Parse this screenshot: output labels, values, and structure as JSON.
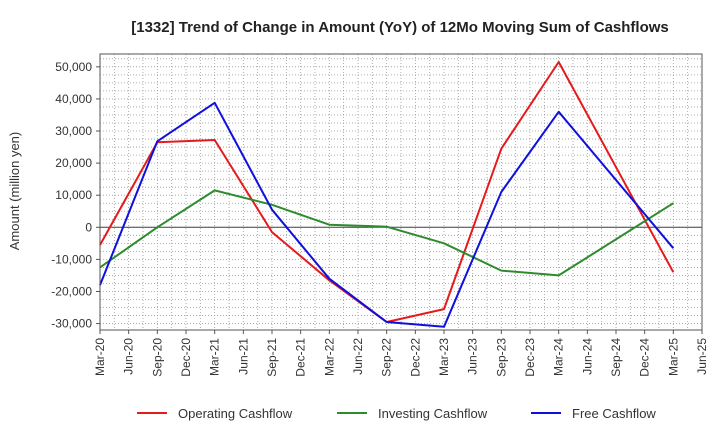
{
  "chart_data": {
    "type": "line",
    "title": "[1332]  Trend of Change in Amount (YoY) of 12Mo Moving Sum of Cashflows",
    "xlabel": "",
    "ylabel": "Amount (million yen)",
    "ylim": [
      -32000,
      54000
    ],
    "yticks": [
      50000,
      40000,
      30000,
      20000,
      10000,
      0,
      -10000,
      -20000,
      -30000
    ],
    "ytick_labels": [
      "50,000",
      "40,000",
      "30,000",
      "20,000",
      "10,000",
      "0",
      "-10,000",
      "-20,000",
      "-30,000"
    ],
    "categories": [
      "Mar-20",
      "Jun-20",
      "Sep-20",
      "Dec-20",
      "Mar-21",
      "Jun-21",
      "Sep-21",
      "Dec-21",
      "Mar-22",
      "Jun-22",
      "Sep-22",
      "Dec-22",
      "Mar-23",
      "Jun-23",
      "Sep-23",
      "Dec-23",
      "Mar-24",
      "Jun-24",
      "Sep-24",
      "Dec-24",
      "Mar-25",
      "Jun-25"
    ],
    "grid": true,
    "legend_position": "bottom",
    "series": [
      {
        "name": "Operating Cashflow",
        "color": "#e41a1c",
        "values": [
          -5500,
          null,
          26500,
          null,
          27200,
          null,
          -1500,
          null,
          -16500,
          null,
          -29500,
          null,
          -25500,
          null,
          24500,
          null,
          51500,
          null,
          null,
          null,
          -14000,
          null
        ]
      },
      {
        "name": "Investing Cashflow",
        "color": "#2e8b2e",
        "values": [
          -12500,
          null,
          0,
          null,
          11500,
          null,
          7000,
          null,
          800,
          null,
          200,
          null,
          -5000,
          null,
          -13500,
          null,
          -15000,
          null,
          null,
          null,
          7500,
          null
        ]
      },
      {
        "name": "Free Cashflow",
        "color": "#1010dd",
        "values": [
          -18000,
          null,
          26800,
          null,
          38800,
          null,
          5500,
          null,
          -16000,
          null,
          -29500,
          null,
          -31000,
          null,
          11000,
          null,
          36000,
          null,
          null,
          null,
          -6500,
          null
        ]
      }
    ]
  }
}
